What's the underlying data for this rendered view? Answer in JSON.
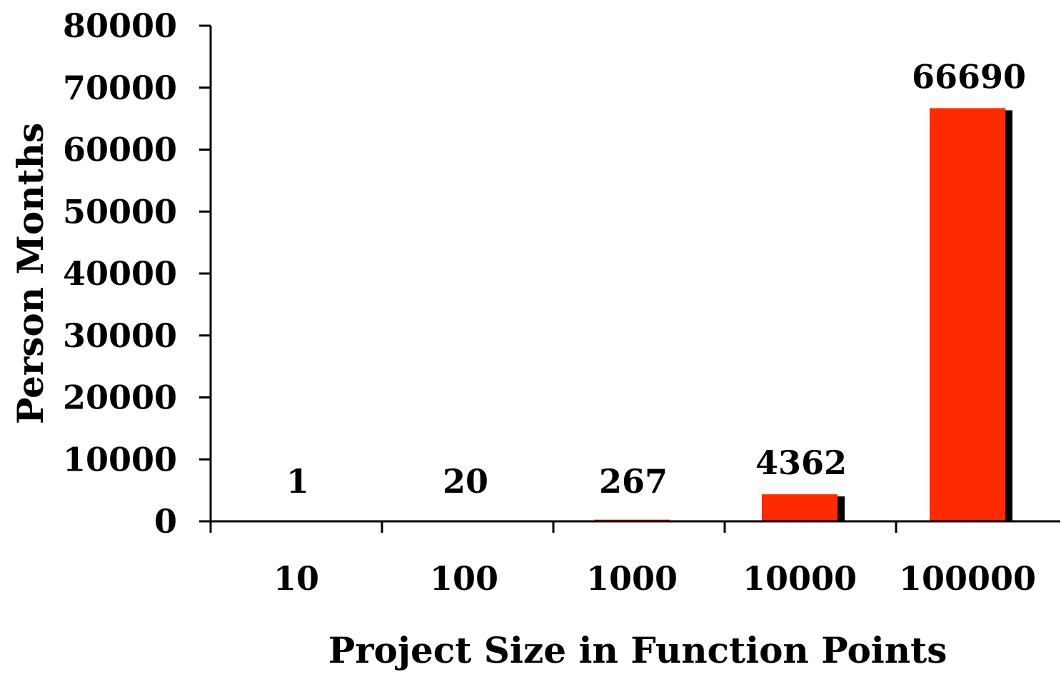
{
  "chart_data": {
    "type": "bar",
    "categories": [
      "10",
      "100",
      "1000",
      "10000",
      "100000"
    ],
    "values": [
      1,
      20,
      267,
      4362,
      66690
    ],
    "data_labels": [
      "1",
      "20",
      "267",
      "4362",
      "66690"
    ],
    "title": "",
    "xlabel": "Project Size in Function Points",
    "ylabel": "Person Months",
    "ylim": [
      0,
      80000
    ],
    "yticks": [
      "0",
      "10000",
      "20000",
      "30000",
      "40000",
      "50000",
      "60000",
      "70000",
      "80000"
    ],
    "grid": false,
    "legend": "none",
    "colors": {
      "bar": "#ff2a00",
      "shadow": "#000000",
      "axis": "#000000"
    }
  }
}
